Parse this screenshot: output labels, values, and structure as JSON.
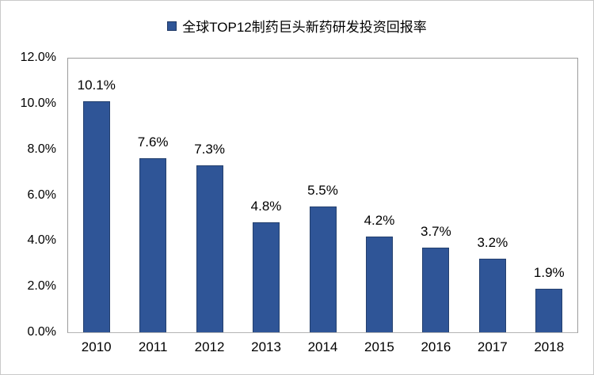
{
  "chart_data": {
    "type": "bar",
    "title": "全球TOP12制药巨头新药研发投资回报率",
    "categories": [
      "2010",
      "2011",
      "2012",
      "2013",
      "2014",
      "2015",
      "2016",
      "2017",
      "2018"
    ],
    "values": [
      10.1,
      7.6,
      7.3,
      4.8,
      5.5,
      4.2,
      3.7,
      3.2,
      1.9
    ],
    "data_labels": [
      "10.1%",
      "7.6%",
      "7.3%",
      "4.8%",
      "5.5%",
      "4.2%",
      "3.7%",
      "3.2%",
      "1.9%"
    ],
    "xlabel": "",
    "ylabel": "",
    "ylim": [
      0,
      12
    ],
    "ytick_labels": [
      "0.0%",
      "2.0%",
      "4.0%",
      "6.0%",
      "8.0%",
      "10.0%",
      "12.0%"
    ],
    "ytick_values": [
      0,
      2,
      4,
      6,
      8,
      10,
      12
    ],
    "grid": false,
    "legend_position": "top",
    "bar_color": "#2F5597",
    "bar_border_color": "#1F3864"
  },
  "legend": {
    "label": "全球TOP12制药巨头新药研发投资回报率",
    "marker_color": "#2F5597"
  }
}
